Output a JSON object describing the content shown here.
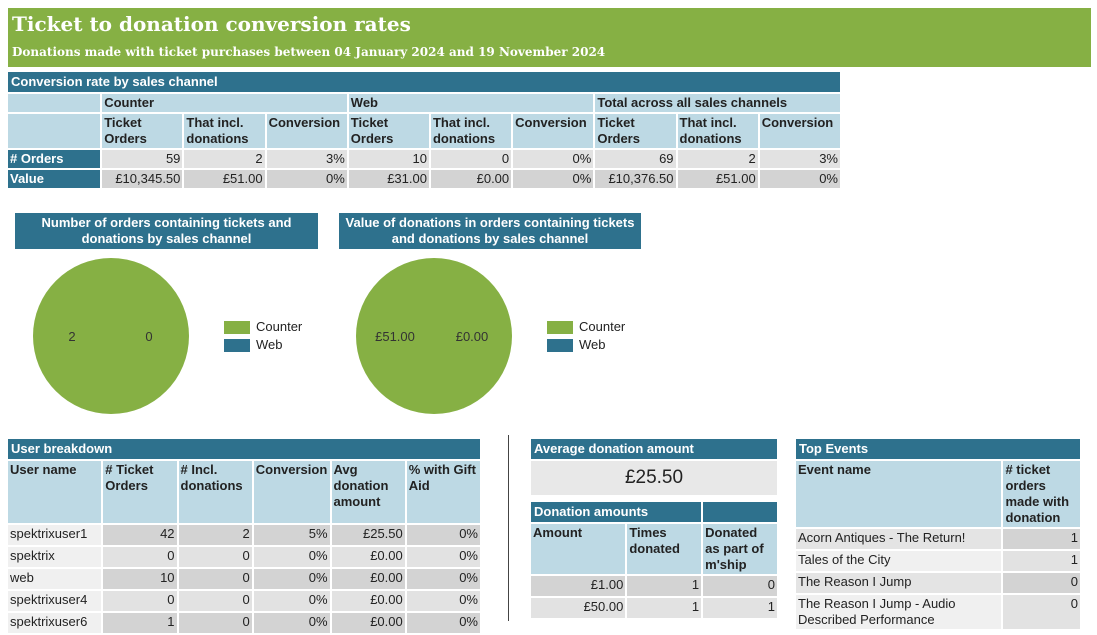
{
  "header": {
    "title": "Ticket to donation conversion rates",
    "subtitle": "Donations made with ticket purchases between 04 January 2024 and 19 November 2024"
  },
  "conversion": {
    "title": "Conversion rate by sales channel",
    "groups": [
      "Counter",
      "Web",
      "Total across all sales channels"
    ],
    "col_headers": [
      "Ticket Orders",
      "That incl. donations",
      "Conversion"
    ],
    "rows": [
      {
        "label": "# Orders",
        "cells": [
          "59",
          "2",
          "3%",
          "10",
          "0",
          "0%",
          "69",
          "2",
          "3%"
        ]
      },
      {
        "label": "Value",
        "cells": [
          "£10,345.50",
          "£51.00",
          "0%",
          "£31.00",
          "£0.00",
          "0%",
          "£10,376.50",
          "£51.00",
          "0%"
        ]
      }
    ]
  },
  "charts": {
    "orders_title": "Number of orders containing tickets and donations by sales channel",
    "value_title": "Value of donations in orders containing tickets and donations by sales channel",
    "legend": [
      {
        "label": "Counter",
        "color": "#86b044"
      },
      {
        "label": "Web",
        "color": "#2e718d"
      }
    ]
  },
  "chart_data": [
    {
      "type": "pie",
      "title": "Number of orders containing tickets and donations by sales channel",
      "categories": [
        "Counter",
        "Web"
      ],
      "values": [
        2,
        0
      ],
      "labels": [
        "2",
        "0"
      ]
    },
    {
      "type": "pie",
      "title": "Value of donations in orders containing tickets and donations by sales channel",
      "categories": [
        "Counter",
        "Web"
      ],
      "values": [
        51.0,
        0.0
      ],
      "labels": [
        "£51.00",
        "£0.00"
      ]
    }
  ],
  "users": {
    "title": "User breakdown",
    "headers": [
      "User name",
      "# Ticket Orders",
      "# Incl. donations",
      "Conversion",
      "Avg donation amount",
      "% with Gift Aid"
    ],
    "rows": [
      [
        "spektrixuser1",
        "42",
        "2",
        "5%",
        "£25.50",
        "0%"
      ],
      [
        "spektrix",
        "0",
        "0",
        "0%",
        "£0.00",
        "0%"
      ],
      [
        "web",
        "10",
        "0",
        "0%",
        "£0.00",
        "0%"
      ],
      [
        "spektrixuser4",
        "0",
        "0",
        "0%",
        "£0.00",
        "0%"
      ],
      [
        "spektrixuser6",
        "1",
        "0",
        "0%",
        "£0.00",
        "0%"
      ]
    ]
  },
  "avg": {
    "title": "Average donation amount",
    "value": "£25.50"
  },
  "amounts": {
    "title": "Donation amounts",
    "headers": [
      "Amount",
      "Times donated",
      "Donated as part of m'ship"
    ],
    "rows": [
      [
        "£1.00",
        "1",
        "0"
      ],
      [
        "£50.00",
        "1",
        "1"
      ]
    ]
  },
  "events": {
    "title": "Top Events",
    "headers": [
      "Event name",
      "# ticket orders made with donation"
    ],
    "rows": [
      [
        "Acorn Antiques - The Return!",
        "1"
      ],
      [
        "Tales of the City",
        "1"
      ],
      [
        "The Reason I Jump",
        "0"
      ],
      [
        "The Reason I Jump - Audio Described Performance",
        "0"
      ]
    ]
  }
}
